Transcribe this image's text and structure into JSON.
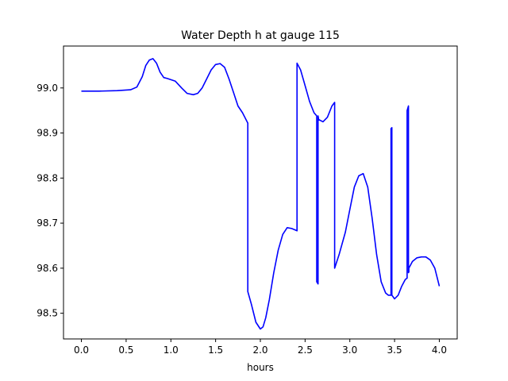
{
  "chart_data": {
    "type": "line",
    "title": "Water Depth h at gauge 115",
    "xlabel": "hours",
    "ylabel": "",
    "xlim": [
      -0.2,
      4.2
    ],
    "ylim": [
      98.443,
      99.093
    ],
    "xticks": [
      0.0,
      0.5,
      1.0,
      1.5,
      2.0,
      2.5,
      3.0,
      3.5,
      4.0
    ],
    "xtick_labels": [
      "0.0",
      "0.5",
      "1.0",
      "1.5",
      "2.0",
      "2.5",
      "3.0",
      "3.5",
      "4.0"
    ],
    "yticks": [
      98.5,
      98.6,
      98.7,
      98.8,
      98.9,
      99.0
    ],
    "ytick_labels": [
      "98.5",
      "98.6",
      "98.7",
      "98.8",
      "98.9",
      "99.0"
    ],
    "grid": false,
    "series": [
      {
        "color": "#0000ff",
        "x": [
          0.0,
          0.2,
          0.4,
          0.55,
          0.62,
          0.68,
          0.72,
          0.76,
          0.8,
          0.84,
          0.88,
          0.92,
          0.96,
          1.05,
          1.12,
          1.18,
          1.25,
          1.3,
          1.35,
          1.4,
          1.45,
          1.5,
          1.55,
          1.6,
          1.65,
          1.7,
          1.75,
          1.8,
          1.86,
          1.86,
          1.9,
          1.95,
          2.0,
          2.03,
          2.06,
          2.1,
          2.15,
          2.2,
          2.25,
          2.3,
          2.35,
          2.4,
          2.41,
          2.41,
          2.45,
          2.5,
          2.55,
          2.6,
          2.63,
          2.63,
          2.645,
          2.645,
          2.65,
          2.65,
          2.7,
          2.75,
          2.8,
          2.83,
          2.83,
          2.88,
          2.95,
          3.0,
          3.05,
          3.1,
          3.15,
          3.2,
          3.25,
          3.3,
          3.35,
          3.4,
          3.43,
          3.46,
          3.46,
          3.47,
          3.47,
          3.5,
          3.54,
          3.58,
          3.62,
          3.64,
          3.64,
          3.655,
          3.655,
          3.66,
          3.66,
          3.7,
          3.75,
          3.8,
          3.85,
          3.9,
          3.95,
          4.0
        ],
        "y": [
          98.993,
          98.993,
          98.994,
          98.996,
          99.002,
          99.025,
          99.05,
          99.062,
          99.065,
          99.055,
          99.035,
          99.023,
          99.021,
          99.015,
          99.0,
          98.988,
          98.985,
          98.988,
          99.0,
          99.02,
          99.04,
          99.052,
          99.054,
          99.046,
          99.02,
          98.99,
          98.96,
          98.945,
          98.922,
          98.548,
          98.52,
          98.48,
          98.465,
          98.47,
          98.49,
          98.53,
          98.59,
          98.64,
          98.675,
          98.69,
          98.688,
          98.684,
          98.683,
          99.055,
          99.04,
          99.005,
          98.97,
          98.945,
          98.938,
          98.57,
          98.565,
          98.938,
          98.932,
          98.93,
          98.925,
          98.935,
          98.96,
          98.968,
          98.6,
          98.63,
          98.68,
          98.73,
          98.78,
          98.805,
          98.81,
          98.78,
          98.71,
          98.63,
          98.57,
          98.545,
          98.54,
          98.54,
          98.91,
          98.912,
          98.54,
          98.532,
          98.54,
          98.56,
          98.575,
          98.578,
          98.95,
          98.96,
          98.59,
          98.592,
          98.6,
          98.615,
          98.623,
          98.625,
          98.625,
          98.618,
          98.6,
          98.56
        ]
      }
    ]
  }
}
